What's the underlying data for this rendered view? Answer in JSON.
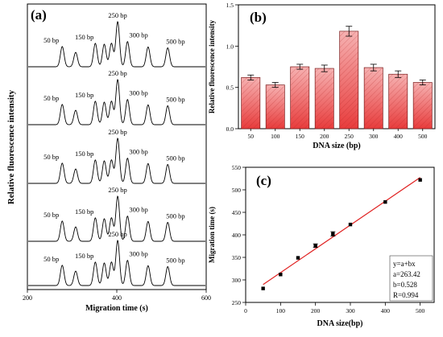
{
  "chart_data": [
    {
      "type": "line",
      "panel_label": "(a)",
      "xlabel": "Migration time (s)",
      "ylabel": "Relative fluorescence intensity",
      "xlim": [
        200,
        600
      ],
      "x_ticks": [
        "200",
        "400",
        "600"
      ],
      "num_traces": 5,
      "peaks_s": [
        278,
        308,
        352,
        372,
        388,
        402,
        424,
        470,
        514
      ],
      "peak_heights": [
        0.45,
        0.32,
        0.52,
        0.5,
        0.52,
        1.0,
        0.56,
        0.44,
        0.42
      ],
      "annotations": [
        "50 bp",
        "150 bp",
        "250 bp",
        "300 bp",
        "500 bp"
      ]
    },
    {
      "type": "bar",
      "panel_label": "(b)",
      "categories": [
        "50",
        "100",
        "150",
        "200",
        "250",
        "300",
        "400",
        "500"
      ],
      "values": [
        0.62,
        0.53,
        0.75,
        0.73,
        1.18,
        0.74,
        0.66,
        0.56
      ],
      "errors": [
        0.03,
        0.03,
        0.03,
        0.04,
        0.06,
        0.04,
        0.04,
        0.03
      ],
      "xlabel": "DNA size (bp)",
      "ylabel": "Relative fluorescence intensity",
      "ylim": [
        0,
        1.5
      ],
      "y_ticks": [
        "0.0",
        "0.5",
        "1.0",
        "1.5"
      ],
      "grid": false,
      "bar_color": "#ee5a5a"
    },
    {
      "type": "scatter",
      "panel_label": "(c)",
      "x": [
        50,
        100,
        150,
        200,
        250,
        300,
        400,
        500
      ],
      "y": [
        281,
        312,
        349,
        376,
        402,
        423,
        473,
        522
      ],
      "errors": [
        0,
        0,
        0,
        4,
        5,
        0,
        0,
        0
      ],
      "xlabel": "DNA size(bp)",
      "ylabel": "Migration time (s)",
      "xlim": [
        0,
        540
      ],
      "ylim": [
        250,
        550
      ],
      "x_ticks": [
        "0",
        "100",
        "200",
        "300",
        "400",
        "500"
      ],
      "y_ticks": [
        "250",
        "300",
        "350",
        "400",
        "450",
        "500",
        "550"
      ],
      "fit": {
        "a": 263.42,
        "b": 0.528,
        "color": "#e02020"
      },
      "equation_box": [
        "y=a+bx",
        "a=263.42",
        "b=0.528",
        "R=0.994"
      ]
    }
  ]
}
